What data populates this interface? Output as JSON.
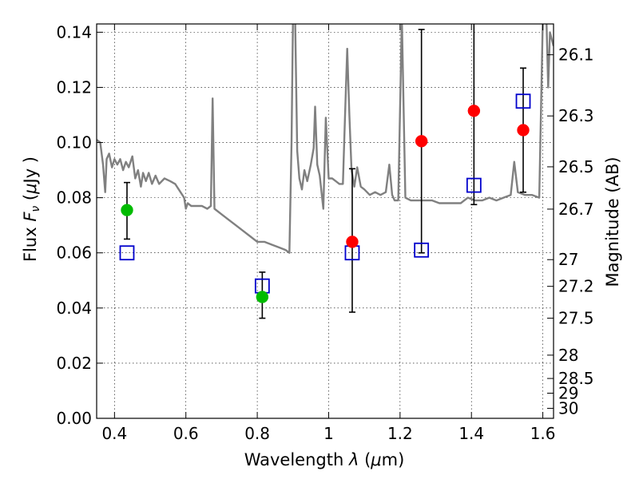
{
  "chart_data": {
    "type": "scatter",
    "xlabel": "Wavelength",
    "xlabel_symbol": "λ",
    "xlabel_unit_open": " (",
    "xlabel_unit_mu": "μ",
    "xlabel_unit_close": "m)",
    "ylabel": "Flux",
    "ylabel_symbol": "F",
    "ylabel_sub": "ν",
    "ylabel_unit_open": " (",
    "ylabel_unit_mu": "μ",
    "ylabel_unit_close": "Jy )",
    "y2label": "Magnitude (AB)",
    "xlim": [
      0.35,
      1.63
    ],
    "ylim": [
      0.0,
      0.143
    ],
    "grid": true,
    "x_ticks": [
      {
        "value": 0.4,
        "label": "0.4"
      },
      {
        "value": 0.6,
        "label": "0.6"
      },
      {
        "value": 0.8,
        "label": "0.8"
      },
      {
        "value": 1.0,
        "label": "1"
      },
      {
        "value": 1.2,
        "label": "1.2"
      },
      {
        "value": 1.4,
        "label": "1.4"
      },
      {
        "value": 1.6,
        "label": "1.6"
      }
    ],
    "y_ticks": [
      {
        "value": 0.0,
        "label": "0.00"
      },
      {
        "value": 0.02,
        "label": "0.02"
      },
      {
        "value": 0.04,
        "label": "0.04"
      },
      {
        "value": 0.06,
        "label": "0.06"
      },
      {
        "value": 0.08,
        "label": "0.08"
      },
      {
        "value": 0.1,
        "label": "0.10"
      },
      {
        "value": 0.12,
        "label": "0.12"
      },
      {
        "value": 0.14,
        "label": "0.14"
      }
    ],
    "y2_ticks": [
      {
        "value": 26.1,
        "label": "26.1"
      },
      {
        "value": 26.3,
        "label": "26.3"
      },
      {
        "value": 26.5,
        "label": "26.5"
      },
      {
        "value": 26.7,
        "label": "26.7"
      },
      {
        "value": 27.0,
        "label": "27"
      },
      {
        "value": 27.2,
        "label": "27.2"
      },
      {
        "value": 27.5,
        "label": "27.5"
      },
      {
        "value": 28.0,
        "label": "28"
      },
      {
        "value": 28.5,
        "label": "28.5"
      },
      {
        "value": 29.0,
        "label": "29"
      },
      {
        "value": 30.0,
        "label": "30"
      }
    ],
    "series": [
      {
        "marker": "circle",
        "color": "#00bb00",
        "points": [
          {
            "x": 0.435,
            "y": 0.0755,
            "err_low": 0.065,
            "err_high": 0.0855
          },
          {
            "x": 0.814,
            "y": 0.044,
            "err_low": 0.0363,
            "err_high": 0.053
          }
        ]
      },
      {
        "marker": "circle",
        "color": "#ff0000",
        "points": [
          {
            "x": 1.066,
            "y": 0.064,
            "err_low": 0.0385,
            "err_high": 0.0905
          },
          {
            "x": 1.26,
            "y": 0.1005,
            "err_low": 0.06,
            "err_high": 0.141
          },
          {
            "x": 1.407,
            "y": 0.1115,
            "err_low": 0.0775,
            "err_high": 0.145
          },
          {
            "x": 1.545,
            "y": 0.1045,
            "err_low": 0.082,
            "err_high": 0.127
          }
        ]
      },
      {
        "marker": "open-square",
        "color": "#0000cc",
        "points": [
          {
            "x": 0.435,
            "y": 0.06
          },
          {
            "x": 0.814,
            "y": 0.048
          },
          {
            "x": 1.066,
            "y": 0.06
          },
          {
            "x": 1.26,
            "y": 0.061
          },
          {
            "x": 1.407,
            "y": 0.0845
          },
          {
            "x": 1.545,
            "y": 0.115
          }
        ]
      },
      {
        "marker": "line",
        "color": "#808080",
        "points": [
          [
            0.35,
            0.101
          ],
          [
            0.36,
            0.1
          ],
          [
            0.368,
            0.092
          ],
          [
            0.374,
            0.082
          ],
          [
            0.378,
            0.094
          ],
          [
            0.385,
            0.096
          ],
          [
            0.393,
            0.091
          ],
          [
            0.4,
            0.094
          ],
          [
            0.408,
            0.092
          ],
          [
            0.416,
            0.094
          ],
          [
            0.424,
            0.09
          ],
          [
            0.432,
            0.093
          ],
          [
            0.44,
            0.091
          ],
          [
            0.45,
            0.095
          ],
          [
            0.458,
            0.087
          ],
          [
            0.466,
            0.09
          ],
          [
            0.474,
            0.084
          ],
          [
            0.48,
            0.089
          ],
          [
            0.488,
            0.086
          ],
          [
            0.496,
            0.089
          ],
          [
            0.505,
            0.085
          ],
          [
            0.515,
            0.088
          ],
          [
            0.525,
            0.085
          ],
          [
            0.54,
            0.087
          ],
          [
            0.556,
            0.086
          ],
          [
            0.57,
            0.085
          ],
          [
            0.585,
            0.082
          ],
          [
            0.595,
            0.08
          ],
          [
            0.6,
            0.076
          ],
          [
            0.605,
            0.078
          ],
          [
            0.615,
            0.077
          ],
          [
            0.63,
            0.077
          ],
          [
            0.645,
            0.077
          ],
          [
            0.66,
            0.076
          ],
          [
            0.67,
            0.077
          ],
          [
            0.675,
            0.116
          ],
          [
            0.68,
            0.076
          ],
          [
            0.7,
            0.074
          ],
          [
            0.72,
            0.072
          ],
          [
            0.74,
            0.07
          ],
          [
            0.76,
            0.068
          ],
          [
            0.78,
            0.066
          ],
          [
            0.8,
            0.064
          ],
          [
            0.82,
            0.064
          ],
          [
            0.84,
            0.063
          ],
          [
            0.86,
            0.062
          ],
          [
            0.88,
            0.061
          ],
          [
            0.89,
            0.06
          ],
          [
            0.896,
            0.1
          ],
          [
            0.9,
            0.145
          ],
          [
            0.906,
            0.145
          ],
          [
            0.912,
            0.097
          ],
          [
            0.918,
            0.087
          ],
          [
            0.925,
            0.083
          ],
          [
            0.932,
            0.09
          ],
          [
            0.94,
            0.086
          ],
          [
            0.95,
            0.092
          ],
          [
            0.958,
            0.098
          ],
          [
            0.962,
            0.113
          ],
          [
            0.968,
            0.092
          ],
          [
            0.975,
            0.088
          ],
          [
            0.985,
            0.076
          ],
          [
            0.992,
            0.109
          ],
          [
            1.0,
            0.087
          ],
          [
            1.01,
            0.087
          ],
          [
            1.02,
            0.086
          ],
          [
            1.03,
            0.085
          ],
          [
            1.04,
            0.085
          ],
          [
            1.046,
            0.11
          ],
          [
            1.052,
            0.134
          ],
          [
            1.058,
            0.11
          ],
          [
            1.064,
            0.09
          ],
          [
            1.072,
            0.084
          ],
          [
            1.08,
            0.091
          ],
          [
            1.09,
            0.084
          ],
          [
            1.1,
            0.083
          ],
          [
            1.115,
            0.081
          ],
          [
            1.13,
            0.082
          ],
          [
            1.145,
            0.081
          ],
          [
            1.16,
            0.082
          ],
          [
            1.17,
            0.092
          ],
          [
            1.178,
            0.081
          ],
          [
            1.185,
            0.079
          ],
          [
            1.195,
            0.079
          ],
          [
            1.205,
            0.145
          ],
          [
            1.215,
            0.08
          ],
          [
            1.23,
            0.079
          ],
          [
            1.25,
            0.079
          ],
          [
            1.27,
            0.079
          ],
          [
            1.29,
            0.079
          ],
          [
            1.31,
            0.078
          ],
          [
            1.33,
            0.078
          ],
          [
            1.35,
            0.078
          ],
          [
            1.37,
            0.078
          ],
          [
            1.39,
            0.08
          ],
          [
            1.41,
            0.079
          ],
          [
            1.43,
            0.079
          ],
          [
            1.45,
            0.08
          ],
          [
            1.47,
            0.079
          ],
          [
            1.49,
            0.08
          ],
          [
            1.51,
            0.081
          ],
          [
            1.52,
            0.093
          ],
          [
            1.53,
            0.082
          ],
          [
            1.55,
            0.081
          ],
          [
            1.57,
            0.081
          ],
          [
            1.59,
            0.08
          ],
          [
            1.6,
            0.145
          ],
          [
            1.61,
            0.145
          ],
          [
            1.615,
            0.12
          ],
          [
            1.62,
            0.14
          ],
          [
            1.63,
            0.135
          ]
        ]
      }
    ]
  }
}
